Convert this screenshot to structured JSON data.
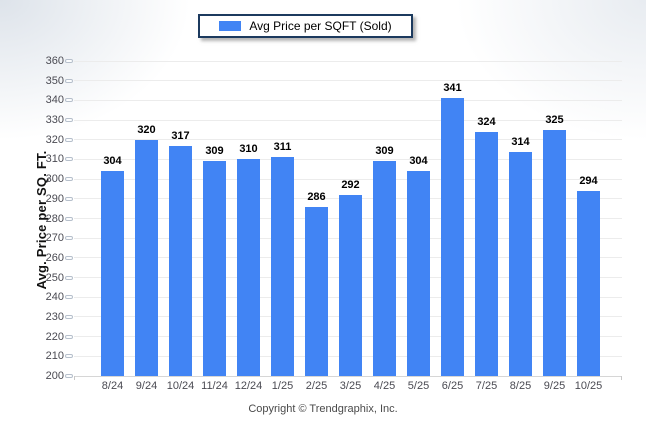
{
  "legend": {
    "label": "Avg Price per SQFT (Sold)"
  },
  "chart_data": {
    "type": "bar",
    "title": "",
    "categories": [
      "8/24",
      "9/24",
      "10/24",
      "11/24",
      "12/24",
      "1/25",
      "2/25",
      "3/25",
      "4/25",
      "5/25",
      "6/25",
      "7/25",
      "8/25",
      "9/25",
      "10/25"
    ],
    "values": [
      304,
      320,
      317,
      309,
      310,
      311,
      286,
      292,
      309,
      304,
      341,
      324,
      314,
      325,
      294
    ],
    "series": [
      {
        "name": "Avg Price per SQFT (Sold)",
        "values": [
          304,
          320,
          317,
          309,
          310,
          311,
          286,
          292,
          309,
          304,
          341,
          324,
          314,
          325,
          294
        ]
      }
    ],
    "xlabel": "",
    "ylabel": "Avg. Price per SQ. FT.",
    "ylim": [
      200,
      360
    ],
    "yticks": [
      200,
      210,
      220,
      230,
      240,
      250,
      260,
      270,
      280,
      290,
      300,
      310,
      320,
      330,
      340,
      350,
      360
    ],
    "grid": true,
    "legend_position": "top-center"
  },
  "footer": {
    "copyright": "Copyright © Trendgraphix, Inc."
  },
  "colors": {
    "bar": "#4184f4",
    "legend_border": "#1c3a5e",
    "gridline": "#ececec",
    "baseline": "#d6d6d6",
    "axis_text": "#4a4a52",
    "value_label": "#000000"
  }
}
